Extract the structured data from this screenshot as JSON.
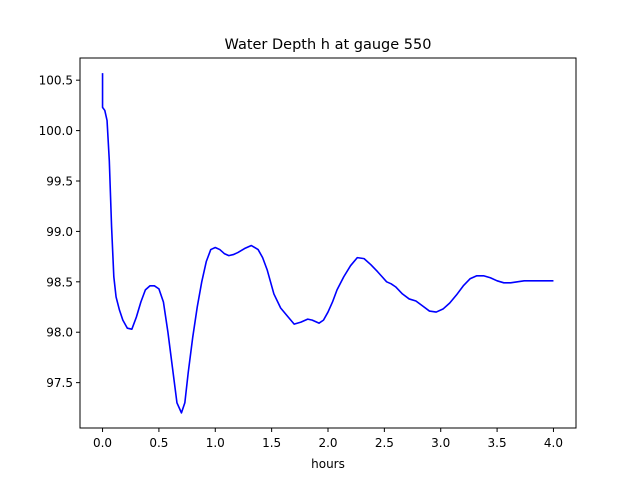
{
  "chart_data": {
    "type": "line",
    "title": "Water Depth h at gauge 550",
    "xlabel": "hours",
    "ylabel": "",
    "xlim": [
      -0.2,
      4.2
    ],
    "ylim": [
      97.05,
      100.72
    ],
    "xticks": [
      0.0,
      0.5,
      1.0,
      1.5,
      2.0,
      2.5,
      3.0,
      3.5,
      4.0
    ],
    "xtick_labels": [
      "0.0",
      "0.5",
      "1.0",
      "1.5",
      "2.0",
      "2.5",
      "3.0",
      "3.5",
      "4.0"
    ],
    "yticks": [
      97.5,
      98.0,
      98.5,
      99.0,
      99.5,
      100.0,
      100.5
    ],
    "ytick_labels": [
      "97.5",
      "98.0",
      "98.5",
      "99.0",
      "99.5",
      "100.0",
      "100.5"
    ],
    "grid": false,
    "series": [
      {
        "color": "#0000ff",
        "x": [
          0.0,
          0.0,
          0.02,
          0.04,
          0.06,
          0.08,
          0.1,
          0.12,
          0.15,
          0.18,
          0.22,
          0.26,
          0.3,
          0.34,
          0.38,
          0.42,
          0.46,
          0.5,
          0.54,
          0.58,
          0.62,
          0.66,
          0.7,
          0.73,
          0.76,
          0.8,
          0.84,
          0.88,
          0.92,
          0.96,
          1.0,
          1.04,
          1.08,
          1.12,
          1.16,
          1.2,
          1.26,
          1.32,
          1.38,
          1.42,
          1.46,
          1.52,
          1.58,
          1.64,
          1.7,
          1.76,
          1.82,
          1.86,
          1.92,
          1.96,
          2.0,
          2.04,
          2.08,
          2.14,
          2.2,
          2.26,
          2.32,
          2.38,
          2.44,
          2.48,
          2.52,
          2.56,
          2.6,
          2.66,
          2.72,
          2.78,
          2.84,
          2.9,
          2.96,
          3.02,
          3.08,
          3.14,
          3.2,
          3.26,
          3.32,
          3.38,
          3.44,
          3.5,
          3.56,
          3.62,
          3.68,
          3.74,
          3.8,
          3.86,
          3.92,
          3.98,
          4.0
        ],
        "y": [
          100.57,
          100.23,
          100.2,
          100.1,
          99.7,
          99.05,
          98.55,
          98.35,
          98.22,
          98.12,
          98.04,
          98.03,
          98.15,
          98.3,
          98.42,
          98.46,
          98.46,
          98.43,
          98.3,
          98.0,
          97.65,
          97.3,
          97.2,
          97.3,
          97.6,
          97.95,
          98.25,
          98.5,
          98.7,
          98.82,
          98.84,
          98.82,
          98.78,
          98.76,
          98.77,
          98.79,
          98.83,
          98.86,
          98.82,
          98.74,
          98.62,
          98.38,
          98.24,
          98.16,
          98.08,
          98.1,
          98.13,
          98.12,
          98.09,
          98.12,
          98.2,
          98.3,
          98.42,
          98.55,
          98.66,
          98.74,
          98.73,
          98.67,
          98.6,
          98.55,
          98.5,
          98.48,
          98.45,
          98.38,
          98.33,
          98.31,
          98.26,
          98.21,
          98.2,
          98.23,
          98.29,
          98.37,
          98.46,
          98.53,
          98.56,
          98.56,
          98.54,
          98.51,
          98.49,
          98.49,
          98.5,
          98.51,
          98.51,
          98.51,
          98.51,
          98.51,
          98.51
        ]
      }
    ]
  }
}
